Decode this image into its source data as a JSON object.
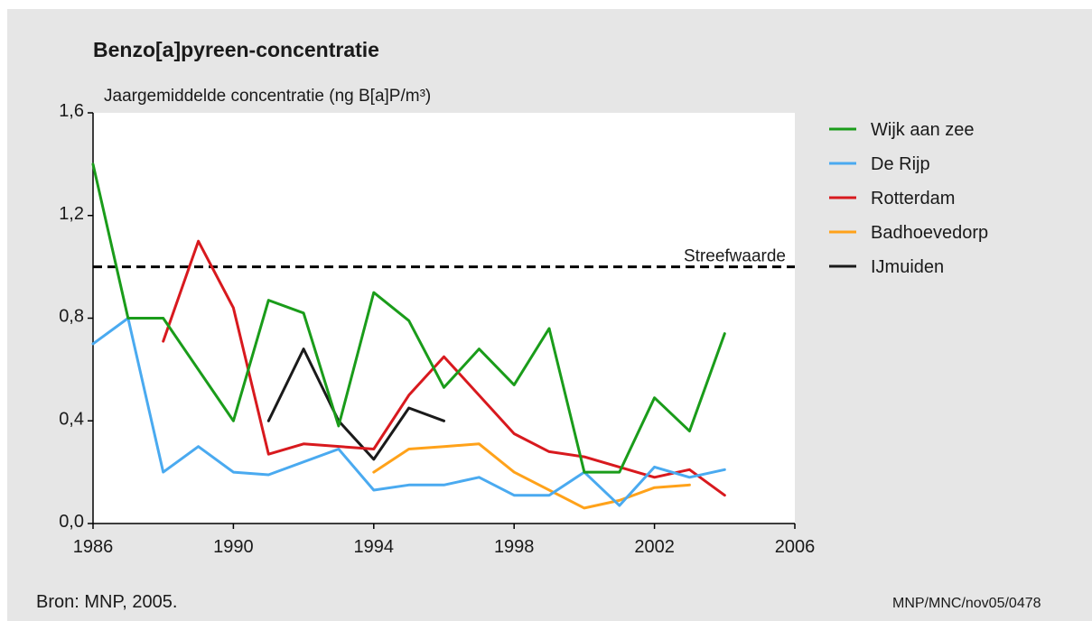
{
  "colors": {
    "frame_background": "#e6e6e6",
    "plot_background": "#ffffff",
    "text": "#1a1a1a"
  },
  "footer": {
    "source": "Bron: MNP, 2005.",
    "code": "MNP/MNC/nov05/0478"
  },
  "chart_data": {
    "type": "line",
    "title": "Benzo[a]pyreen-concentratie",
    "ylabel": "Jaargemiddelde concentratie (ng B[a]P/m³)",
    "xlabel": "",
    "xlim": [
      1986,
      2006
    ],
    "ylim": [
      0,
      1.6
    ],
    "xticks": [
      1986,
      1990,
      1994,
      1998,
      2002,
      2006
    ],
    "xtick_labels": [
      "1986",
      "1990",
      "1994",
      "1998",
      "2002",
      "2006"
    ],
    "yticks": [
      0,
      0.4,
      0.8,
      1.2,
      1.6
    ],
    "ytick_labels": [
      "0,0",
      "0,4",
      "0,8",
      "1,2",
      "1,6"
    ],
    "grid": false,
    "legend_position": "right",
    "reference_line": {
      "label": "Streefwaarde",
      "value": 1.0,
      "style": "dashed",
      "color": "#000000"
    },
    "series": [
      {
        "name": "Wijk aan zee",
        "color": "#1a9c1a",
        "points": [
          [
            1986,
            1.4
          ],
          [
            1987,
            0.8
          ],
          [
            1988,
            0.8
          ],
          [
            1990,
            0.4
          ],
          [
            1991,
            0.87
          ],
          [
            1992,
            0.82
          ],
          [
            1993,
            0.38
          ],
          [
            1994,
            0.9
          ],
          [
            1995,
            0.79
          ],
          [
            1996,
            0.53
          ],
          [
            1997,
            0.68
          ],
          [
            1998,
            0.54
          ],
          [
            1999,
            0.76
          ],
          [
            2000,
            0.2
          ],
          [
            2001,
            0.2
          ],
          [
            2002,
            0.49
          ],
          [
            2003,
            0.36
          ],
          [
            2004,
            0.74
          ]
        ]
      },
      {
        "name": "De Rijp",
        "color": "#4aaaf0",
        "points": [
          [
            1986,
            0.7
          ],
          [
            1987,
            0.8
          ],
          [
            1988,
            0.2
          ],
          [
            1989,
            0.3
          ],
          [
            1990,
            0.2
          ],
          [
            1991,
            0.19
          ],
          [
            1993,
            0.29
          ],
          [
            1994,
            0.13
          ],
          [
            1995,
            0.15
          ],
          [
            1996,
            0.15
          ],
          [
            1997,
            0.18
          ],
          [
            1998,
            0.11
          ],
          [
            1999,
            0.11
          ],
          [
            2000,
            0.2
          ],
          [
            2001,
            0.07
          ],
          [
            2002,
            0.22
          ],
          [
            2003,
            0.18
          ],
          [
            2004,
            0.21
          ]
        ]
      },
      {
        "name": "Rotterdam",
        "color": "#d8191e",
        "points": [
          [
            1988,
            0.71
          ],
          [
            1989,
            1.1
          ],
          [
            1990,
            0.84
          ],
          [
            1991,
            0.27
          ],
          [
            1992,
            0.31
          ],
          [
            1994,
            0.29
          ],
          [
            1995,
            0.5
          ],
          [
            1996,
            0.65
          ],
          [
            1998,
            0.35
          ],
          [
            1999,
            0.28
          ],
          [
            2000,
            0.26
          ],
          [
            2002,
            0.18
          ],
          [
            2003,
            0.21
          ],
          [
            2004,
            0.11
          ]
        ]
      },
      {
        "name": "Badhoevedorp",
        "color": "#ffa21a",
        "points": [
          [
            1994,
            0.2
          ],
          [
            1995,
            0.29
          ],
          [
            1996,
            0.3
          ],
          [
            1997,
            0.31
          ],
          [
            1998,
            0.2
          ],
          [
            2000,
            0.06
          ],
          [
            2001,
            0.09
          ],
          [
            2002,
            0.14
          ],
          [
            2003,
            0.15
          ]
        ]
      },
      {
        "name": "IJmuiden",
        "color": "#1a1a1a",
        "points": [
          [
            1991,
            0.4
          ],
          [
            1992,
            0.68
          ],
          [
            1993,
            0.4
          ],
          [
            1994,
            0.25
          ],
          [
            1995,
            0.45
          ],
          [
            1996,
            0.4
          ]
        ]
      }
    ]
  }
}
